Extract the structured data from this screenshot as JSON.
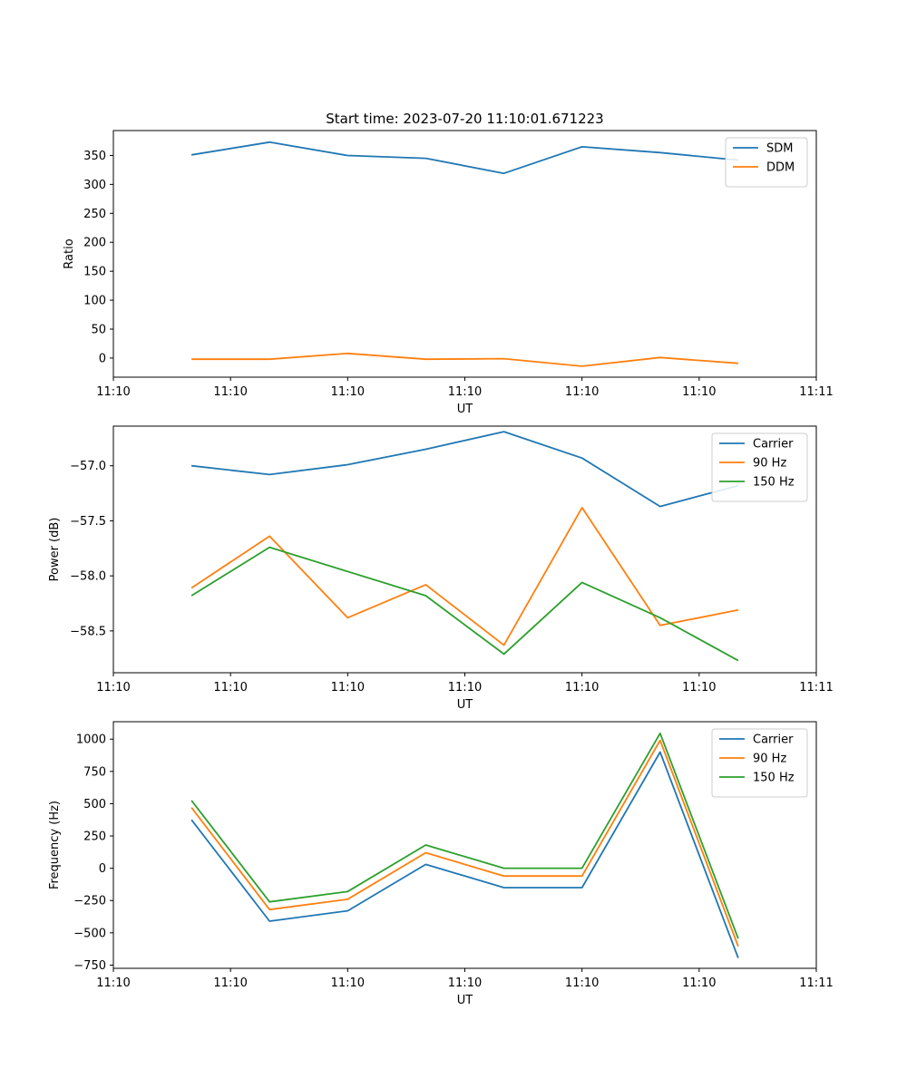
{
  "figure": {
    "title": "Start time: 2023-07-20 11:10:01.671223"
  },
  "colors": {
    "blue": "#1f77b4",
    "orange": "#ff7f0e",
    "green": "#2ca02c"
  },
  "chart_data": [
    {
      "type": "line",
      "title": "Start time: 2023-07-20 11:10:01.671223",
      "xlabel": "UT",
      "ylabel": "Ratio",
      "xlim": [
        0,
        9
      ],
      "ylim": [
        -33,
        393
      ],
      "x": [
        1,
        2,
        3,
        4,
        5,
        6,
        7,
        8
      ],
      "xticks": [
        0,
        1.5,
        3,
        4.5,
        6,
        7.5,
        9
      ],
      "xtick_labels": [
        "11:10",
        "11:10",
        "11:10",
        "11:10",
        "11:10",
        "11:10",
        "11:11"
      ],
      "yticks": [
        0,
        50,
        100,
        150,
        200,
        250,
        300,
        350
      ],
      "ytick_labels": [
        "0",
        "50",
        "100",
        "150",
        "200",
        "250",
        "300",
        "350"
      ],
      "legend_position": "top-right",
      "series": [
        {
          "name": "SDM",
          "color": "blue",
          "values": [
            351,
            373,
            350,
            345,
            319,
            365,
            355,
            342
          ]
        },
        {
          "name": "DDM",
          "color": "orange",
          "values": [
            -2,
            -2,
            8,
            -2,
            -1,
            -14,
            1,
            -9
          ]
        }
      ]
    },
    {
      "type": "line",
      "title": "",
      "xlabel": "UT",
      "ylabel": "Power (dB)",
      "xlim": [
        0,
        9
      ],
      "ylim": [
        -58.88,
        -56.64
      ],
      "x": [
        1,
        2,
        3,
        4,
        5,
        6,
        7,
        8
      ],
      "xticks": [
        0,
        1.5,
        3,
        4.5,
        6,
        7.5,
        9
      ],
      "xtick_labels": [
        "11:10",
        "11:10",
        "11:10",
        "11:10",
        "11:10",
        "11:10",
        "11:11"
      ],
      "yticks": [
        -57.0,
        -57.5,
        -58.0,
        -58.5
      ],
      "ytick_labels": [
        "−57.0",
        "−57.5",
        "−58.0",
        "−58.5"
      ],
      "legend_position": "top-right",
      "series": [
        {
          "name": "Carrier",
          "color": "blue",
          "values": [
            -57.0,
            -57.08,
            -56.99,
            -56.85,
            -56.69,
            -56.93,
            -57.37,
            -57.18
          ]
        },
        {
          "name": "90 Hz",
          "color": "orange",
          "values": [
            -58.11,
            -57.64,
            -58.38,
            -58.08,
            -58.63,
            -57.38,
            -58.45,
            -58.31
          ]
        },
        {
          "name": "150 Hz",
          "color": "green",
          "values": [
            -58.18,
            -57.74,
            -57.96,
            -58.18,
            -58.71,
            -58.06,
            -58.38,
            -58.77
          ]
        }
      ]
    },
    {
      "type": "line",
      "title": "",
      "xlabel": "UT",
      "ylabel": "Frequency (Hz)",
      "xlim": [
        0,
        9
      ],
      "ylim": [
        -775,
        1135
      ],
      "x": [
        1,
        2,
        3,
        4,
        5,
        6,
        7,
        8
      ],
      "xticks": [
        0,
        1.5,
        3,
        4.5,
        6,
        7.5,
        9
      ],
      "xtick_labels": [
        "11:10",
        "11:10",
        "11:10",
        "11:10",
        "11:10",
        "11:10",
        "11:11"
      ],
      "yticks": [
        -750,
        -500,
        -250,
        0,
        250,
        500,
        750,
        1000
      ],
      "ytick_labels": [
        "−750",
        "−500",
        "−250",
        "0",
        "250",
        "500",
        "750",
        "1000"
      ],
      "legend_position": "top-right",
      "series": [
        {
          "name": "Carrier",
          "color": "blue",
          "values": [
            375,
            -410,
            -330,
            30,
            -150,
            -150,
            900,
            -695
          ]
        },
        {
          "name": "90 Hz",
          "color": "orange",
          "values": [
            470,
            -320,
            -240,
            120,
            -60,
            -60,
            990,
            -605
          ]
        },
        {
          "name": "150 Hz",
          "color": "green",
          "values": [
            525,
            -260,
            -180,
            180,
            0,
            0,
            1045,
            -545
          ]
        }
      ]
    }
  ]
}
